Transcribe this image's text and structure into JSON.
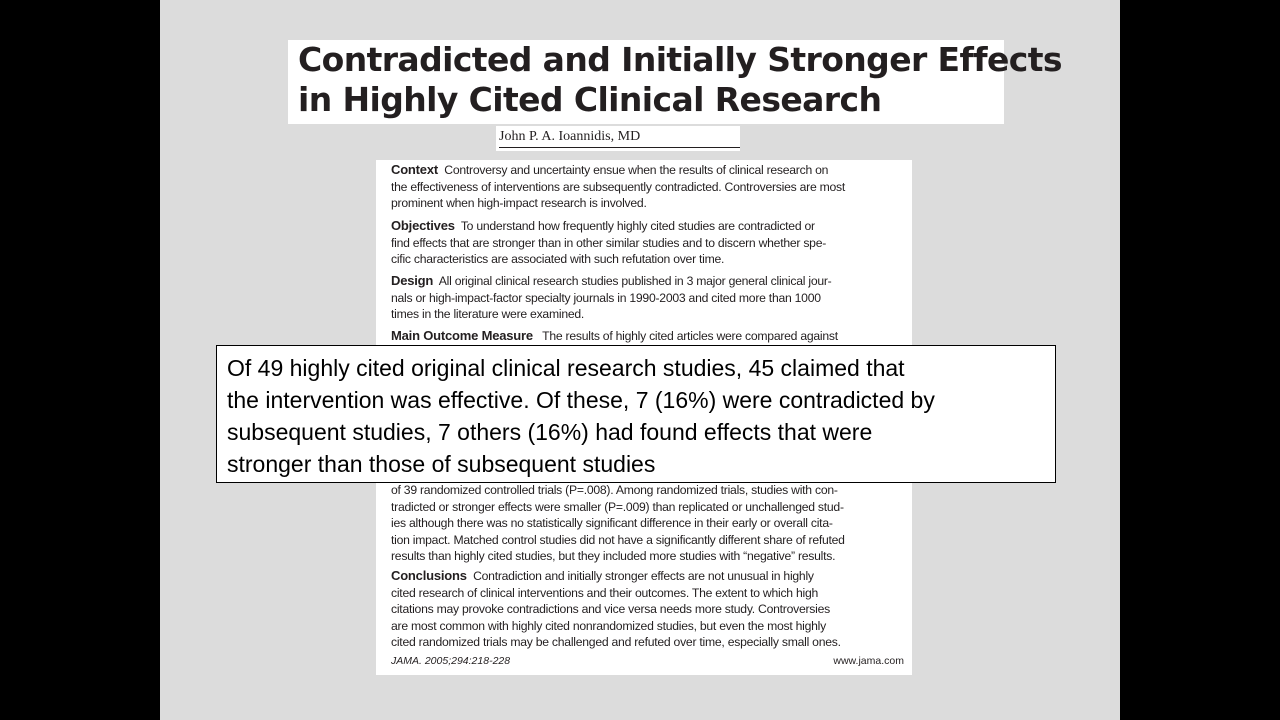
{
  "title": {
    "line1": "Contradicted and Initially Stronger Effects",
    "line2": "in Highly Cited Clinical Research"
  },
  "author": "John P. A. Ioannidis, MD",
  "abstract": {
    "context": {
      "label": "Context",
      "lines": [
        "Controversy and uncertainty ensue when the results of clinical research on",
        "the effectiveness of interventions are subsequently contradicted. Controversies are most",
        "prominent when high-impact research is involved."
      ]
    },
    "objectives": {
      "label": "Objectives",
      "lines": [
        "To understand how frequently highly cited studies are contradicted or",
        "find effects that are stronger than in other similar studies and to discern whether spe-",
        "cific characteristics are associated with such refutation over time."
      ]
    },
    "design": {
      "label": "Design",
      "lines": [
        "All original clinical research studies published in 3 major general clinical jour-",
        "nals or high-impact-factor specialty journals in 1990-2003 and cited more than 1000",
        "times in the literature were examined."
      ]
    },
    "main_outcome": {
      "label": "Main Outcome Measure",
      "lines": [
        "The results of highly cited articles were compared against"
      ]
    },
    "results_tail": {
      "lines": [
        "of 39 randomized controlled trials (P=.008). Among randomized trials, studies with con-",
        "tradicted or stronger effects were smaller (P=.009) than replicated or unchallenged stud-",
        "ies although there was no statistically significant difference in their early or overall cita-",
        "tion impact. Matched control studies did not have a significantly different share of refuted",
        "results than highly cited studies, but they included more studies with “negative” results."
      ]
    },
    "conclusions": {
      "label": "Conclusions",
      "lines": [
        "Contradiction and initially stronger effects are not unusual in highly",
        "cited research of clinical interventions and their outcomes. The extent to which high",
        "citations may provoke contradictions and vice versa needs more study. Controversies",
        "are most common with highly cited nonrandomized studies, but even the most highly",
        "cited randomized trials may be challenged and refuted over time, especially small ones."
      ]
    },
    "citation": "JAMA. 2005;294:218-228",
    "website": "www.jama.com"
  },
  "callout": {
    "lines": [
      "Of 49 highly cited original clinical research studies, 45 claimed that",
      "the intervention was effective. Of these, 7 (16%) were contradicted by",
      "subsequent studies, 7 others (16%) had found effects that were",
      "stronger than those of subsequent studies"
    ]
  }
}
